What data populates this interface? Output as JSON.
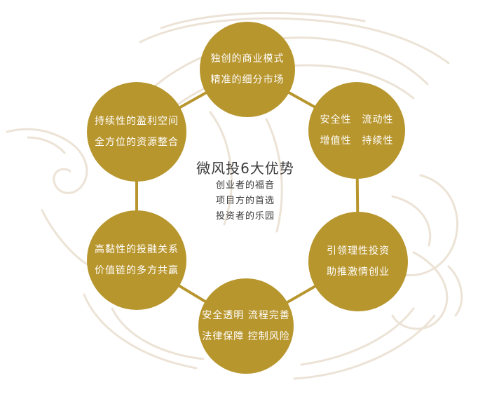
{
  "center": {
    "title": "微风投6大优势",
    "lines": [
      "创业者的福音",
      "项目方的首选",
      "投资者的乐园"
    ]
  },
  "nodes": [
    {
      "id": "top",
      "lines": [
        "独创的商业模式",
        "精准的细分市场"
      ]
    },
    {
      "id": "ur",
      "lines": [
        "安全性　流动性",
        "增值性　持续性"
      ]
    },
    {
      "id": "lr",
      "lines": [
        "引领理性投资",
        "助推激情创业"
      ]
    },
    {
      "id": "bottom",
      "lines": [
        "安全透明 流程完善",
        "法律保障 控制风险"
      ]
    },
    {
      "id": "ll",
      "lines": [
        "高黏性的投融关系",
        "价值链的多方共赢"
      ]
    },
    {
      "id": "ul",
      "lines": [
        "持续性的盈利空间",
        "全方位的资源整合"
      ]
    }
  ],
  "colors": {
    "node_fill": "#b8962e",
    "connector": "#b8962e",
    "node_text": "#ffffff",
    "center_text": "#3b3b3b",
    "background_ornament": "#ece3d6"
  }
}
